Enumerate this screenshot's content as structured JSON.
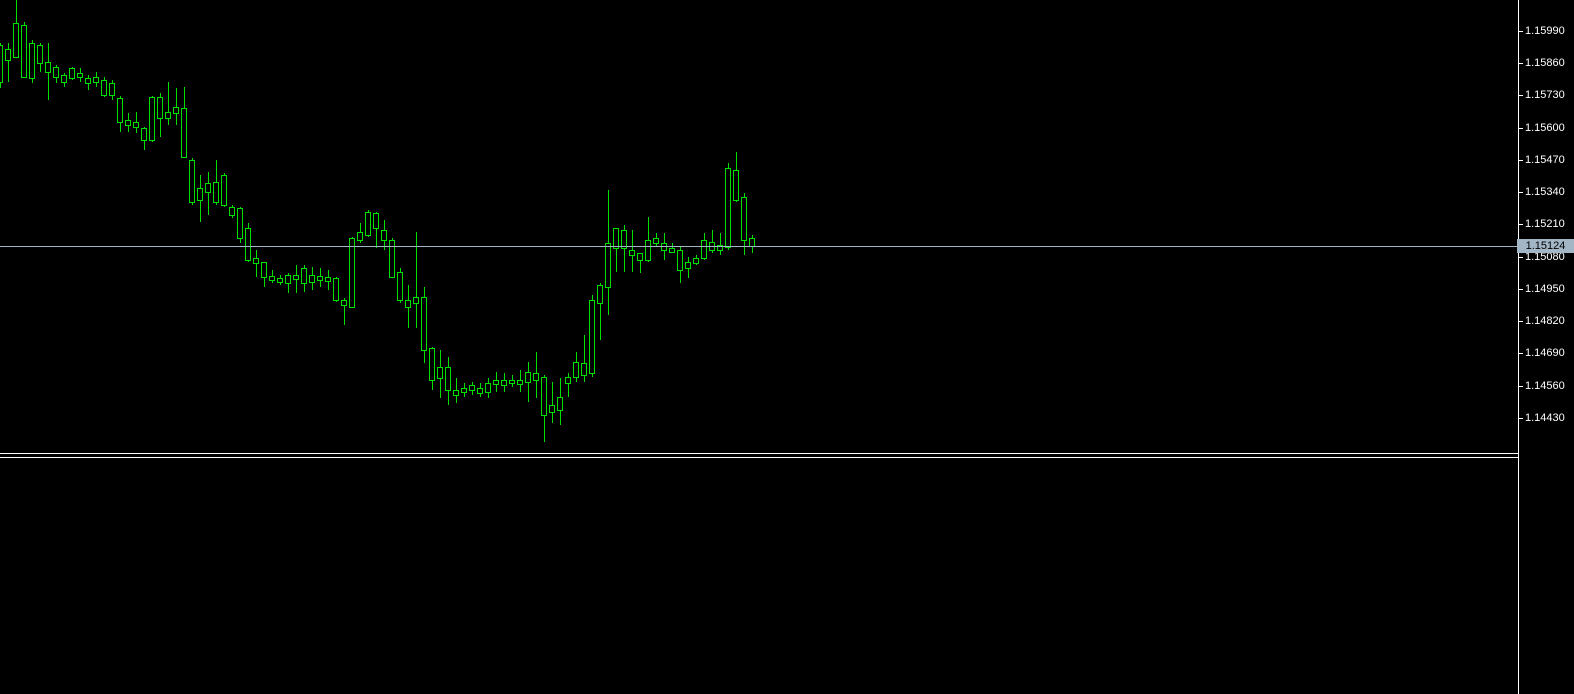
{
  "colors": {
    "background": "#000000",
    "candle": "#00DF00",
    "candle_fill": "#000000",
    "axis_line": "#FFFFFF",
    "separator": "#FFFFFF",
    "label_text": "#FFFFFF",
    "price_line": "#A3B6C6",
    "price_tag_bg": "#A3B6C6",
    "price_tag_text": "#000000"
  },
  "current_price": {
    "label": "1.15124",
    "value": 1.15124
  },
  "chart_data": {
    "type": "candlestick",
    "title": "",
    "xlabel": "",
    "ylabel": "",
    "y_axis_side": "right",
    "grid": false,
    "ylim": [
      1.1429,
      1.16115
    ],
    "y_tick_step": 0.0013,
    "y_tick_labels": [
      "1.15990",
      "1.15860",
      "1.15730",
      "1.15600",
      "1.15470",
      "1.15340",
      "1.15210",
      "1.15080",
      "1.14950",
      "1.14820",
      "1.14690",
      "1.14560",
      "1.14430"
    ],
    "current_price_line": 1.15124,
    "candles": [
      {
        "o": 1.15934,
        "h": 1.15942,
        "l": 1.1576,
        "c": 1.15785
      },
      {
        "o": 1.15873,
        "h": 1.15942,
        "l": 1.15785,
        "c": 1.15918
      },
      {
        "o": 1.16022,
        "h": 1.16115,
        "l": 1.15881,
        "c": 1.15885
      },
      {
        "o": 1.16014,
        "h": 1.16026,
        "l": 1.15801,
        "c": 1.15805
      },
      {
        "o": 1.15942,
        "h": 1.15954,
        "l": 1.15781,
        "c": 1.15801
      },
      {
        "o": 1.15861,
        "h": 1.15942,
        "l": 1.15825,
        "c": 1.15934
      },
      {
        "o": 1.15865,
        "h": 1.15942,
        "l": 1.15712,
        "c": 1.15825
      },
      {
        "o": 1.15845,
        "h": 1.15853,
        "l": 1.15781,
        "c": 1.15805
      },
      {
        "o": 1.15813,
        "h": 1.15821,
        "l": 1.15764,
        "c": 1.15785
      },
      {
        "o": 1.15801,
        "h": 1.15845,
        "l": 1.15793,
        "c": 1.15841
      },
      {
        "o": 1.15821,
        "h": 1.15841,
        "l": 1.15785,
        "c": 1.15805
      },
      {
        "o": 1.15801,
        "h": 1.15813,
        "l": 1.15752,
        "c": 1.15781
      },
      {
        "o": 1.15785,
        "h": 1.15825,
        "l": 1.15764,
        "c": 1.15805
      },
      {
        "o": 1.15793,
        "h": 1.15805,
        "l": 1.15724,
        "c": 1.15732
      },
      {
        "o": 1.15781,
        "h": 1.15793,
        "l": 1.15712,
        "c": 1.15732
      },
      {
        "o": 1.1572,
        "h": 1.15728,
        "l": 1.15583,
        "c": 1.15623
      },
      {
        "o": 1.15611,
        "h": 1.1566,
        "l": 1.15583,
        "c": 1.15631
      },
      {
        "o": 1.15623,
        "h": 1.15664,
        "l": 1.15579,
        "c": 1.15603
      },
      {
        "o": 1.15599,
        "h": 1.15603,
        "l": 1.1551,
        "c": 1.15551
      },
      {
        "o": 1.15551,
        "h": 1.15728,
        "l": 1.15543,
        "c": 1.15724
      },
      {
        "o": 1.15639,
        "h": 1.1574,
        "l": 1.15563,
        "c": 1.15724
      },
      {
        "o": 1.15664,
        "h": 1.15785,
        "l": 1.15611,
        "c": 1.15639
      },
      {
        "o": 1.1566,
        "h": 1.1576,
        "l": 1.15611,
        "c": 1.15684
      },
      {
        "o": 1.1568,
        "h": 1.15764,
        "l": 1.15478,
        "c": 1.15482
      },
      {
        "o": 1.1547,
        "h": 1.15478,
        "l": 1.15289,
        "c": 1.15301
      },
      {
        "o": 1.15357,
        "h": 1.1541,
        "l": 1.1522,
        "c": 1.15309
      },
      {
        "o": 1.15341,
        "h": 1.15422,
        "l": 1.15248,
        "c": 1.15377
      },
      {
        "o": 1.15382,
        "h": 1.1547,
        "l": 1.15289,
        "c": 1.15301
      },
      {
        "o": 1.1541,
        "h": 1.15418,
        "l": 1.15281,
        "c": 1.15289
      },
      {
        "o": 1.15281,
        "h": 1.15289,
        "l": 1.15236,
        "c": 1.15248
      },
      {
        "o": 1.15277,
        "h": 1.15281,
        "l": 1.15135,
        "c": 1.15156
      },
      {
        "o": 1.15196,
        "h": 1.15216,
        "l": 1.15059,
        "c": 1.15067
      },
      {
        "o": 1.15075,
        "h": 1.15107,
        "l": 1.14999,
        "c": 1.15055
      },
      {
        "o": 1.15059,
        "h": 1.15059,
        "l": 1.14958,
        "c": 1.14999
      },
      {
        "o": 1.14987,
        "h": 1.15027,
        "l": 1.14974,
        "c": 1.15003
      },
      {
        "o": 1.14995,
        "h": 1.15007,
        "l": 1.14966,
        "c": 1.14978
      },
      {
        "o": 1.15007,
        "h": 1.15015,
        "l": 1.14934,
        "c": 1.14974
      },
      {
        "o": 1.14991,
        "h": 1.15047,
        "l": 1.14934,
        "c": 1.15007
      },
      {
        "o": 1.14974,
        "h": 1.15047,
        "l": 1.14938,
        "c": 1.15035
      },
      {
        "o": 1.15007,
        "h": 1.15039,
        "l": 1.14946,
        "c": 1.14978
      },
      {
        "o": 1.14987,
        "h": 1.15035,
        "l": 1.14958,
        "c": 1.15003
      },
      {
        "o": 1.14999,
        "h": 1.15027,
        "l": 1.14946,
        "c": 1.14983
      },
      {
        "o": 1.14995,
        "h": 1.14999,
        "l": 1.14898,
        "c": 1.14906
      },
      {
        "o": 1.14906,
        "h": 1.14914,
        "l": 1.14805,
        "c": 1.14886
      },
      {
        "o": 1.14878,
        "h": 1.1516,
        "l": 1.14874,
        "c": 1.15156
      },
      {
        "o": 1.15147,
        "h": 1.15216,
        "l": 1.15135,
        "c": 1.1518
      },
      {
        "o": 1.15168,
        "h": 1.15269,
        "l": 1.1516,
        "c": 1.15261
      },
      {
        "o": 1.15257,
        "h": 1.15261,
        "l": 1.15115,
        "c": 1.15196
      },
      {
        "o": 1.15188,
        "h": 1.15228,
        "l": 1.15107,
        "c": 1.15147
      },
      {
        "o": 1.15147,
        "h": 1.15156,
        "l": 1.14995,
        "c": 1.14999
      },
      {
        "o": 1.15019,
        "h": 1.15035,
        "l": 1.14894,
        "c": 1.14906
      },
      {
        "o": 1.14906,
        "h": 1.14966,
        "l": 1.14793,
        "c": 1.14878
      },
      {
        "o": 1.14894,
        "h": 1.1518,
        "l": 1.14793,
        "c": 1.14918
      },
      {
        "o": 1.14918,
        "h": 1.14958,
        "l": 1.14652,
        "c": 1.14704
      },
      {
        "o": 1.14713,
        "h": 1.14717,
        "l": 1.14543,
        "c": 1.14584
      },
      {
        "o": 1.14636,
        "h": 1.14704,
        "l": 1.14511,
        "c": 1.14592
      },
      {
        "o": 1.14636,
        "h": 1.14676,
        "l": 1.14483,
        "c": 1.14543
      },
      {
        "o": 1.14543,
        "h": 1.14592,
        "l": 1.14491,
        "c": 1.14523
      },
      {
        "o": 1.14551,
        "h": 1.14572,
        "l": 1.14515,
        "c": 1.14535
      },
      {
        "o": 1.14543,
        "h": 1.14576,
        "l": 1.14523,
        "c": 1.14563
      },
      {
        "o": 1.14551,
        "h": 1.14572,
        "l": 1.14515,
        "c": 1.14531
      },
      {
        "o": 1.14535,
        "h": 1.14592,
        "l": 1.14511,
        "c": 1.14572
      },
      {
        "o": 1.14567,
        "h": 1.14616,
        "l": 1.14535,
        "c": 1.14584
      },
      {
        "o": 1.14584,
        "h": 1.14612,
        "l": 1.14535,
        "c": 1.14563
      },
      {
        "o": 1.14572,
        "h": 1.14604,
        "l": 1.14555,
        "c": 1.14584
      },
      {
        "o": 1.14584,
        "h": 1.14624,
        "l": 1.14535,
        "c": 1.14567
      },
      {
        "o": 1.14616,
        "h": 1.14656,
        "l": 1.14495,
        "c": 1.14576
      },
      {
        "o": 1.14584,
        "h": 1.14696,
        "l": 1.14511,
        "c": 1.14612
      },
      {
        "o": 1.14596,
        "h": 1.14604,
        "l": 1.14334,
        "c": 1.14443
      },
      {
        "o": 1.14483,
        "h": 1.14576,
        "l": 1.1441,
        "c": 1.14455
      },
      {
        "o": 1.14463,
        "h": 1.14592,
        "l": 1.14402,
        "c": 1.14515
      },
      {
        "o": 1.14572,
        "h": 1.14612,
        "l": 1.14515,
        "c": 1.14596
      },
      {
        "o": 1.14596,
        "h": 1.14696,
        "l": 1.14576,
        "c": 1.14656
      },
      {
        "o": 1.14604,
        "h": 1.14765,
        "l": 1.14576,
        "c": 1.14652
      },
      {
        "o": 1.14612,
        "h": 1.14926,
        "l": 1.14596,
        "c": 1.14906
      },
      {
        "o": 1.14894,
        "h": 1.14974,
        "l": 1.14745,
        "c": 1.14966
      },
      {
        "o": 1.14958,
        "h": 1.15349,
        "l": 1.14846,
        "c": 1.15136
      },
      {
        "o": 1.15196,
        "h": 1.15196,
        "l": 1.15019,
        "c": 1.15115
      },
      {
        "o": 1.15115,
        "h": 1.15208,
        "l": 1.15019,
        "c": 1.15188
      },
      {
        "o": 1.15107,
        "h": 1.15188,
        "l": 1.15019,
        "c": 1.15087
      },
      {
        "o": 1.15095,
        "h": 1.15095,
        "l": 1.15015,
        "c": 1.15067
      },
      {
        "o": 1.15067,
        "h": 1.1524,
        "l": 1.15059,
        "c": 1.15147
      },
      {
        "o": 1.15156,
        "h": 1.15176,
        "l": 1.15119,
        "c": 1.15136
      },
      {
        "o": 1.15136,
        "h": 1.15176,
        "l": 1.15067,
        "c": 1.15107
      },
      {
        "o": 1.15099,
        "h": 1.15136,
        "l": 1.15095,
        "c": 1.15115
      },
      {
        "o": 1.15107,
        "h": 1.15119,
        "l": 1.14974,
        "c": 1.15027
      },
      {
        "o": 1.15035,
        "h": 1.15079,
        "l": 1.14995,
        "c": 1.15059
      },
      {
        "o": 1.15075,
        "h": 1.15087,
        "l": 1.15047,
        "c": 1.15055
      },
      {
        "o": 1.15075,
        "h": 1.15176,
        "l": 1.15067,
        "c": 1.15147
      },
      {
        "o": 1.15107,
        "h": 1.15188,
        "l": 1.15095,
        "c": 1.15139
      },
      {
        "o": 1.15107,
        "h": 1.15176,
        "l": 1.15087,
        "c": 1.15127
      },
      {
        "o": 1.15119,
        "h": 1.15458,
        "l": 1.15107,
        "c": 1.15438
      },
      {
        "o": 1.1543,
        "h": 1.15502,
        "l": 1.15301,
        "c": 1.15309
      },
      {
        "o": 1.15321,
        "h": 1.15337,
        "l": 1.15087,
        "c": 1.15147
      },
      {
        "o": 1.15156,
        "h": 1.15168,
        "l": 1.15095,
        "c": 1.15124
      }
    ]
  }
}
